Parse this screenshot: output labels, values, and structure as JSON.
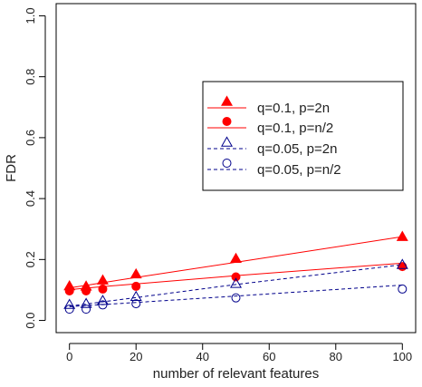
{
  "chart_data": {
    "type": "scatter",
    "title": "",
    "xlabel": "number of relevant features",
    "ylabel": "FDR",
    "xlim": [
      -4,
      104
    ],
    "ylim": [
      -0.04,
      1.04
    ],
    "xticks": [
      0,
      20,
      40,
      60,
      80,
      100
    ],
    "yticks": [
      0.0,
      0.2,
      0.4,
      0.6,
      0.8,
      1.0
    ],
    "x": [
      0,
      5,
      10,
      20,
      50,
      100
    ],
    "grid": false,
    "legend_position": "top-right",
    "series": [
      {
        "name": "q=0.1, p=2n",
        "values": [
          0.113,
          0.112,
          0.132,
          0.152,
          0.203,
          0.275
        ],
        "fit": [
          0.107,
          0.115,
          0.124,
          0.141,
          0.191,
          0.275
        ],
        "color": "#ff0000",
        "marker": "filled-triangle",
        "line": "solid"
      },
      {
        "name": "q=0.1, p=n/2",
        "values": [
          0.097,
          0.097,
          0.103,
          0.112,
          0.143,
          0.177
        ],
        "fit": [
          0.101,
          0.106,
          0.111,
          0.12,
          0.147,
          0.188
        ],
        "color": "#ff0000",
        "marker": "filled-circle",
        "line": "solid"
      },
      {
        "name": "q=0.05, p=2n",
        "values": [
          0.052,
          0.055,
          0.065,
          0.078,
          0.121,
          0.183
        ],
        "fit": [
          0.047,
          0.054,
          0.061,
          0.075,
          0.118,
          0.183
        ],
        "color": "#00008b",
        "marker": "open-triangle",
        "line": "dashed"
      },
      {
        "name": "q=0.05, p=n/2",
        "values": [
          0.037,
          0.037,
          0.051,
          0.055,
          0.074,
          0.103
        ],
        "fit": [
          0.045,
          0.049,
          0.052,
          0.059,
          0.08,
          0.116
        ],
        "color": "#00008b",
        "marker": "open-circle",
        "line": "dashed"
      }
    ]
  }
}
